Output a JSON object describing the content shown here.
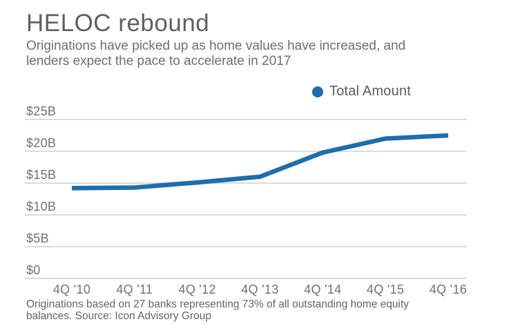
{
  "header": {
    "title": "HELOC rebound",
    "subtitle_line1": "Originations have picked up as home values have increased, and",
    "subtitle_line2": "lenders expect the pace to accelerate in 2017"
  },
  "legend": {
    "label": "Total Amount",
    "marker_color": "#1f6dad"
  },
  "chart_data": {
    "type": "line",
    "title": "HELOC rebound",
    "categories": [
      "4Q '10",
      "4Q '11",
      "4Q '12",
      "4Q '13",
      "4Q '14",
      "4Q '15",
      "4Q '16"
    ],
    "series": [
      {
        "name": "Total Amount",
        "values": [
          14.2,
          14.3,
          15.1,
          16.0,
          19.8,
          22.0,
          22.5
        ],
        "color": "#1f6dad"
      }
    ],
    "unit": "billions of dollars",
    "xlabel": "",
    "ylabel": "",
    "ylim": [
      0,
      25
    ],
    "yticks": [
      {
        "value": 0,
        "label": "$0"
      },
      {
        "value": 5,
        "label": "$5B"
      },
      {
        "value": 10,
        "label": "$10B"
      },
      {
        "value": 15,
        "label": "$15B"
      },
      {
        "value": 20,
        "label": "$20B"
      },
      {
        "value": 25,
        "label": "$25B"
      }
    ],
    "grid": true,
    "legend_position": "top-right"
  },
  "footer": {
    "line1": "Originations based on 27 banks representing 73% of all outstanding home equity",
    "line2": "balances. Source: Icon Advisory Group"
  },
  "colors": {
    "line": "#1f6dad",
    "gridline": "#cfcfcd",
    "title_text": "#606062",
    "subtitle_text": "#6e6e70",
    "axis_text": "#707174",
    "footer_text": "#636466",
    "background": "#ffffff"
  }
}
